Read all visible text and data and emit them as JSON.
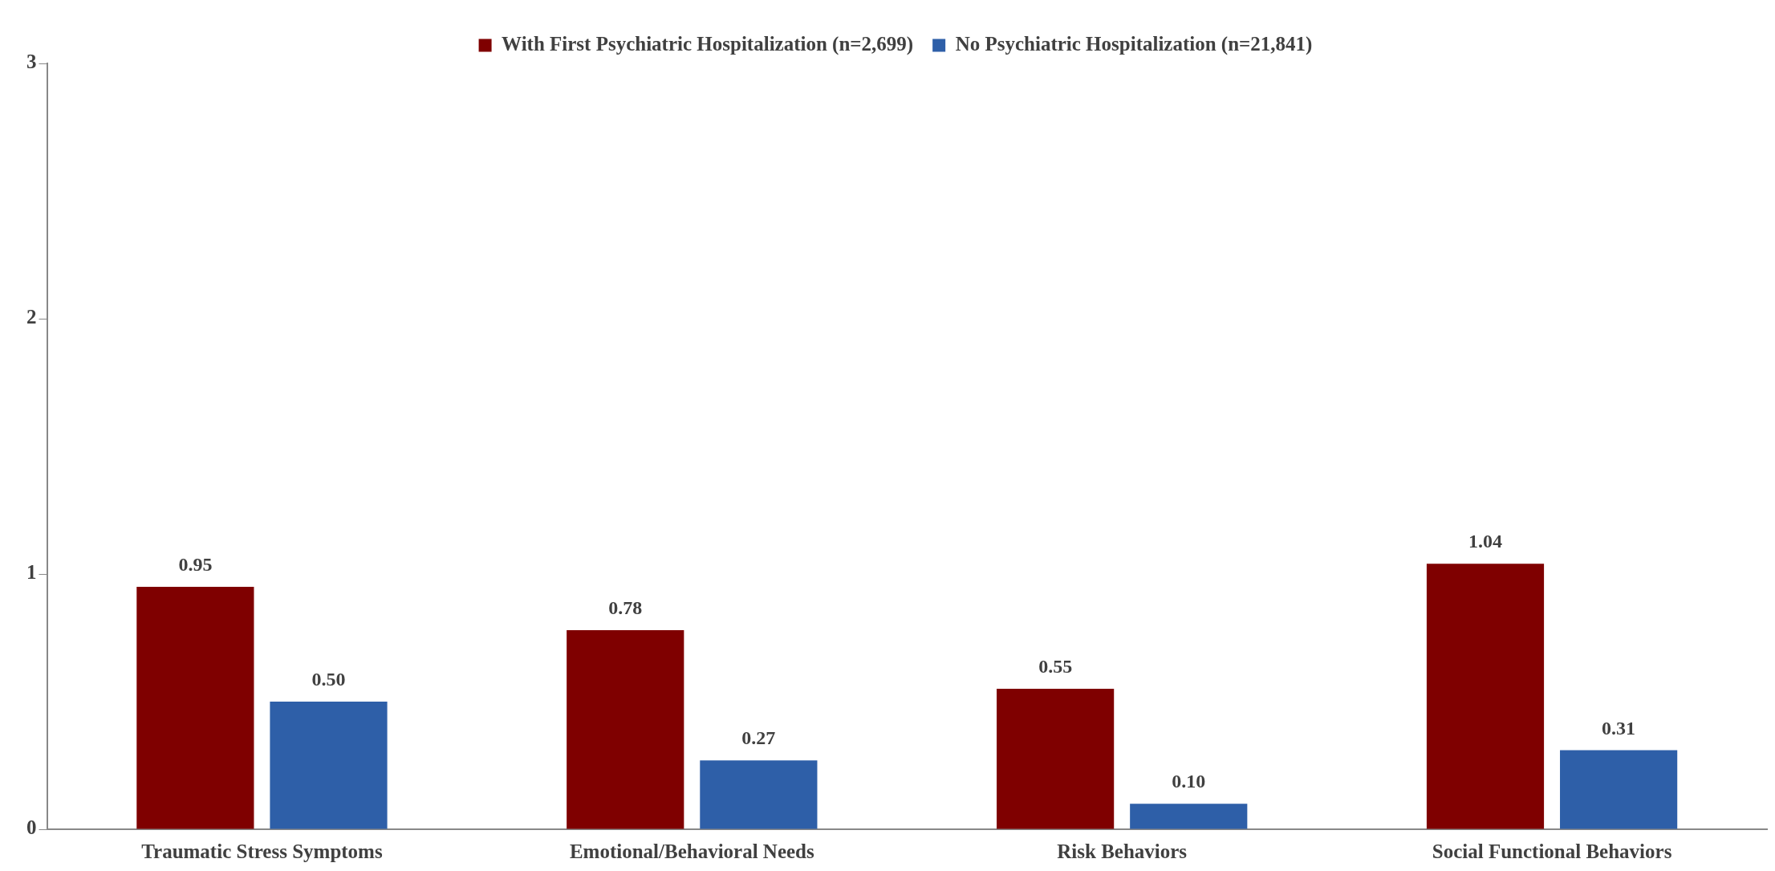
{
  "chart_data": {
    "type": "bar",
    "categories": [
      "Traumatic Stress Symptoms",
      "Emotional/Behavioral Needs",
      "Risk Behaviors",
      "Social Functional Behaviors"
    ],
    "series": [
      {
        "name": "With First Psychiatric Hospitalization (n=2,699)",
        "color": "#7f0000",
        "values": [
          0.95,
          0.78,
          0.55,
          1.04
        ],
        "value_labels": [
          "0.95",
          "0.78",
          "0.55",
          "1.04"
        ]
      },
      {
        "name": "No Psychiatric Hospitalization (n=21,841)",
        "color": "#2e5fa8",
        "values": [
          0.5,
          0.27,
          0.1,
          0.31
        ],
        "value_labels": [
          "0.50",
          "0.27",
          "0.10",
          "0.31"
        ]
      }
    ],
    "ylim": [
      0,
      3
    ],
    "yticks": [
      0,
      1,
      2,
      3
    ],
    "grid": false,
    "legend": "top"
  }
}
